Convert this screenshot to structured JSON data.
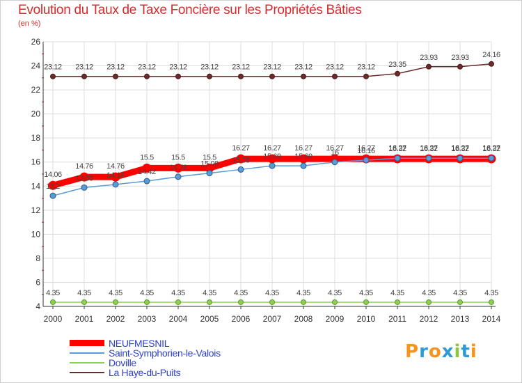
{
  "header": {
    "title": "Evolution du Taux de Taxe Foncière sur les Propriétés Bâties",
    "unit": "(en %)"
  },
  "chart_data": {
    "type": "line",
    "title": "Evolution du Taux de Taxe Foncière sur les Propriétés Bâties",
    "ylabel": "(en %)",
    "xlabel": "",
    "ylim": [
      4,
      26
    ],
    "yticks": [
      4,
      6,
      8,
      10,
      12,
      14,
      16,
      18,
      20,
      22,
      24,
      26
    ],
    "grid": true,
    "x": [
      "2000",
      "2001",
      "2002",
      "2003",
      "2004",
      "2005",
      "2006",
      "2007",
      "2008",
      "2009",
      "2010",
      "2011",
      "2012",
      "2013",
      "2014"
    ],
    "series": [
      {
        "name": "NEUFMESNIL",
        "color": "#ff0000",
        "values": [
          14.06,
          14.76,
          14.76,
          15.5,
          15.5,
          15.5,
          16.27,
          16.27,
          16.27,
          16.27,
          16.27,
          16.27,
          16.27,
          16.27,
          16.27
        ],
        "labels": [
          "14.06",
          "14.76",
          "14.76",
          "15.5",
          "15.5",
          "15.5",
          "16.27",
          "16.27",
          "16.27",
          "16.27",
          "16.27",
          "16.27",
          "16.27",
          "16.27",
          "16.27"
        ]
      },
      {
        "name": "Saint-Symphorien-le-Valois",
        "color": "#5b9bd5",
        "values": [
          13.2,
          13.88,
          14.14,
          14.42,
          14.78,
          15.08,
          15.38,
          15.69,
          15.69,
          16.0,
          16.16,
          16.32,
          16.32,
          16.32,
          16.32
        ],
        "labels": [
          "13.2",
          "13.88",
          "14.14",
          "14.42",
          "14.78",
          "15.08",
          "15.38",
          "15.69",
          "15.69",
          "16",
          "16.16",
          "16.32",
          "16.32",
          "16.32",
          "16.32"
        ]
      },
      {
        "name": "Doville",
        "color": "#8fd14f",
        "values": [
          4.35,
          4.35,
          4.35,
          4.35,
          4.35,
          4.35,
          4.35,
          4.35,
          4.35,
          4.35,
          4.35,
          4.35,
          4.35,
          4.35,
          4.35
        ],
        "labels": [
          "4.35",
          "4.35",
          "4.35",
          "4.35",
          "4.35",
          "4.35",
          "4.35",
          "4.35",
          "4.35",
          "4.35",
          "4.35",
          "4.35",
          "4.35",
          "4.35",
          "4.35"
        ]
      },
      {
        "name": "La Haye-du-Puits",
        "color": "#6b2b2b",
        "values": [
          23.12,
          23.12,
          23.12,
          23.12,
          23.12,
          23.12,
          23.12,
          23.12,
          23.12,
          23.12,
          23.12,
          23.35,
          23.93,
          23.93,
          24.16
        ],
        "labels": [
          "23.12",
          "23.12",
          "23.12",
          "23.12",
          "23.12",
          "23.12",
          "23.12",
          "23.12",
          "23.12",
          "23.12",
          "23.12",
          "23.35",
          "23.93",
          "23.93",
          "24.16"
        ]
      }
    ],
    "legend_position": "bottom-left"
  },
  "logo": {
    "text": "Proxiti",
    "colors": [
      "#f7941d",
      "#2e9bd6",
      "#f7941d",
      "#2e9bd6",
      "#8dc63f",
      "#2e9bd6",
      "#f7941d"
    ]
  }
}
